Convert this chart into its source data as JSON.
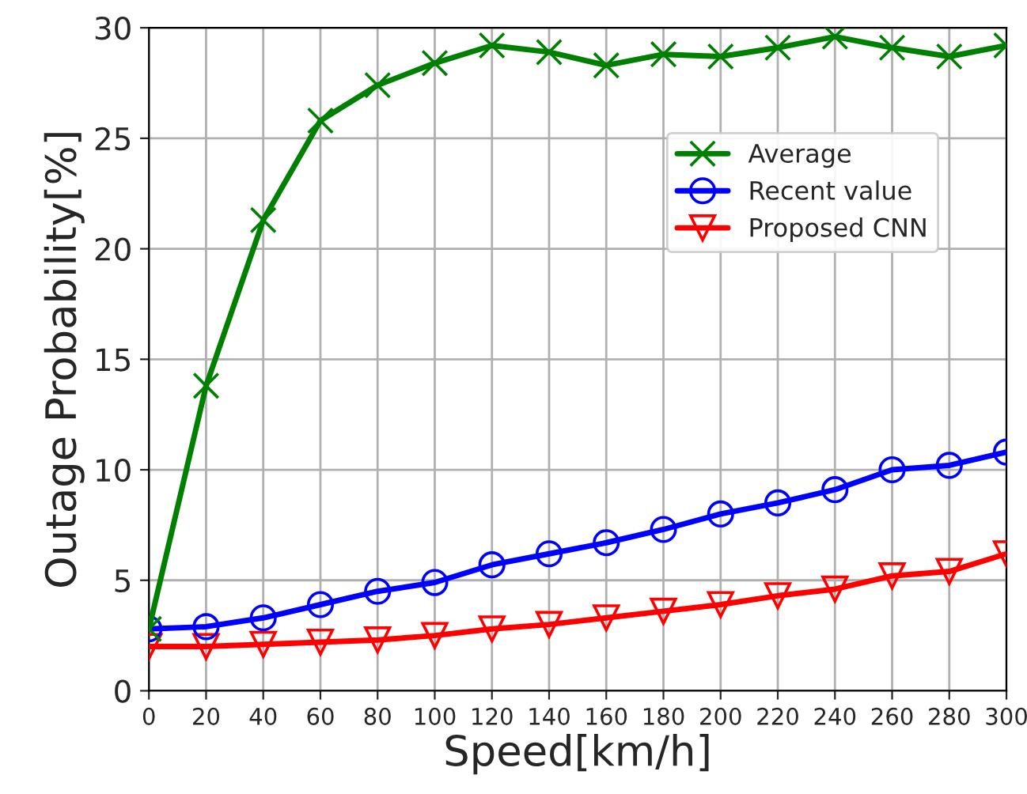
{
  "chart_data": {
    "type": "line",
    "xlabel": "Speed[km/h]",
    "ylabel": "Outage Probability[%]",
    "x": [
      0,
      20,
      40,
      60,
      80,
      100,
      120,
      140,
      160,
      180,
      200,
      220,
      240,
      260,
      280,
      300
    ],
    "series": [
      {
        "name": "Average",
        "color": "#008000",
        "marker": "cross",
        "values": [
          2.8,
          13.8,
          21.3,
          25.8,
          27.4,
          28.4,
          29.2,
          28.9,
          28.3,
          28.8,
          28.7,
          29.1,
          29.6,
          29.1,
          28.7,
          29.2
        ]
      },
      {
        "name": "Recent value",
        "color": "#0000ff",
        "marker": "circle",
        "values": [
          2.8,
          2.9,
          3.3,
          3.9,
          4.5,
          4.9,
          5.7,
          6.2,
          6.7,
          7.3,
          8.0,
          8.5,
          9.1,
          10.0,
          10.2,
          10.8
        ]
      },
      {
        "name": "Proposed CNN",
        "color": "#ff0000",
        "marker": "triangle",
        "values": [
          2.0,
          2.0,
          2.1,
          2.2,
          2.3,
          2.5,
          2.8,
          3.0,
          3.3,
          3.6,
          3.9,
          4.3,
          4.6,
          5.2,
          5.4,
          6.2
        ]
      }
    ],
    "xlim": [
      0,
      300
    ],
    "xticks": [
      0,
      20,
      40,
      60,
      80,
      100,
      120,
      140,
      160,
      180,
      200,
      220,
      240,
      260,
      280,
      300
    ],
    "ylim": [
      0,
      30
    ],
    "yticks": [
      0,
      5,
      10,
      15,
      20,
      25,
      30
    ],
    "grid": true,
    "legend": "top right",
    "line_style": "solid"
  }
}
